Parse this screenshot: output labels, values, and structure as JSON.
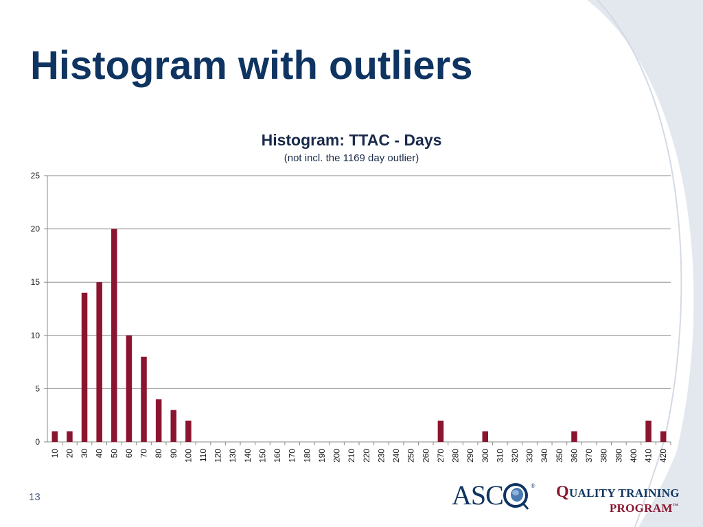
{
  "slide": {
    "title": "Histogram with outliers",
    "page_number": "13"
  },
  "logos": {
    "asco": "ASC",
    "asco_reg": "®",
    "qtp_line1_initial": "Q",
    "qtp_line1_rest": "UALITY TRAINING",
    "qtp_line2": "PROGRAM",
    "qtp_tm": "™"
  },
  "colors": {
    "title": "#0f3461",
    "bar": "#8b1530",
    "gridline": "#8a8a8a",
    "swoosh": "#e3e8ee"
  },
  "chart_data": {
    "type": "bar",
    "title": "Histogram: TTAC - Days",
    "subtitle": "(not incl. the 1169 day outlier)",
    "xlabel": "",
    "ylabel": "",
    "ylim": [
      0,
      25
    ],
    "yticks": [
      0,
      5,
      10,
      15,
      20,
      25
    ],
    "grid": true,
    "legend": "none",
    "categories": [
      "10",
      "20",
      "30",
      "40",
      "50",
      "60",
      "70",
      "80",
      "90",
      "100",
      "110",
      "120",
      "130",
      "140",
      "150",
      "160",
      "170",
      "180",
      "190",
      "200",
      "210",
      "220",
      "230",
      "240",
      "250",
      "260",
      "270",
      "280",
      "290",
      "300",
      "310",
      "320",
      "330",
      "340",
      "350",
      "360",
      "370",
      "380",
      "390",
      "400",
      "410",
      "420"
    ],
    "values": [
      1,
      1,
      14,
      15,
      20,
      10,
      8,
      4,
      3,
      2,
      0,
      0,
      0,
      0,
      0,
      0,
      0,
      0,
      0,
      0,
      0,
      0,
      0,
      0,
      0,
      0,
      2,
      0,
      0,
      1,
      0,
      0,
      0,
      0,
      0,
      1,
      0,
      0,
      0,
      0,
      2,
      1
    ]
  }
}
